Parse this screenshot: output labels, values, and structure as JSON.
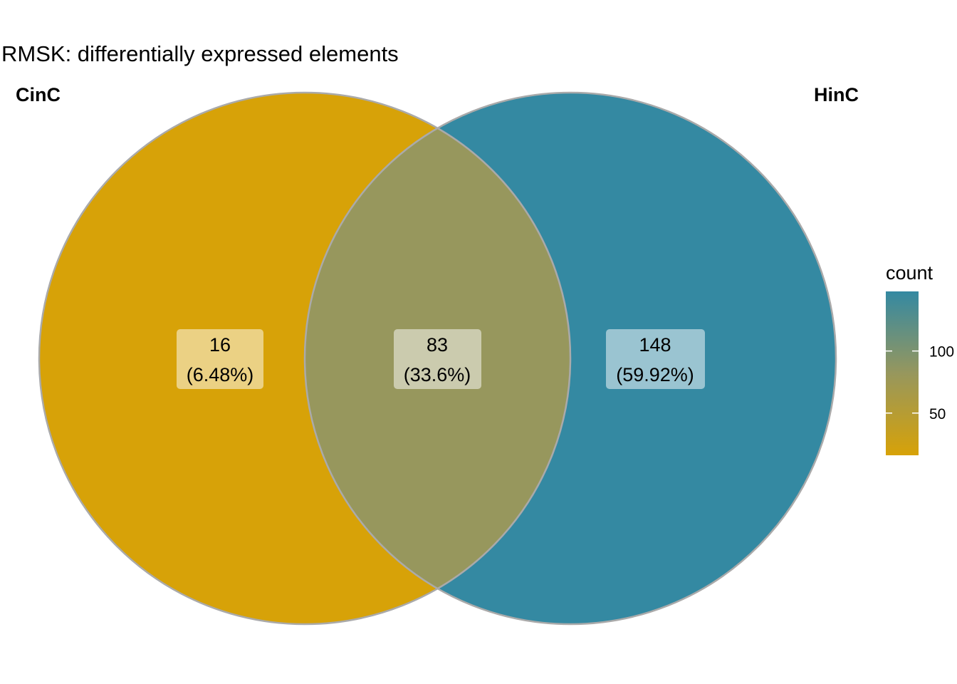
{
  "title": "RMSK: differentially expressed elements",
  "sets": [
    {
      "name": "CinC",
      "color": "#D7A208"
    },
    {
      "name": "HinC",
      "color": "#3489A2"
    }
  ],
  "regions": [
    {
      "sets": [
        "CinC"
      ],
      "count": "16",
      "percent": "(6.48%)",
      "fill": "#D7A208"
    },
    {
      "sets": [
        "CinC",
        "HinC"
      ],
      "count": "83",
      "percent": "(33.6%)",
      "fill": "#97975D"
    },
    {
      "sets": [
        "HinC"
      ],
      "count": "148",
      "percent": "(59.92%)",
      "fill": "#3489A2"
    }
  ],
  "legend": {
    "title": "count",
    "ticks": [
      {
        "value": 50,
        "label": "50"
      },
      {
        "value": 100,
        "label": "100"
      }
    ],
    "range": [
      16,
      148
    ],
    "low_color": "#D7A208",
    "mid_color": "#97975D",
    "high_color": "#3489A2"
  },
  "outline_color": "#AAAAAA"
}
